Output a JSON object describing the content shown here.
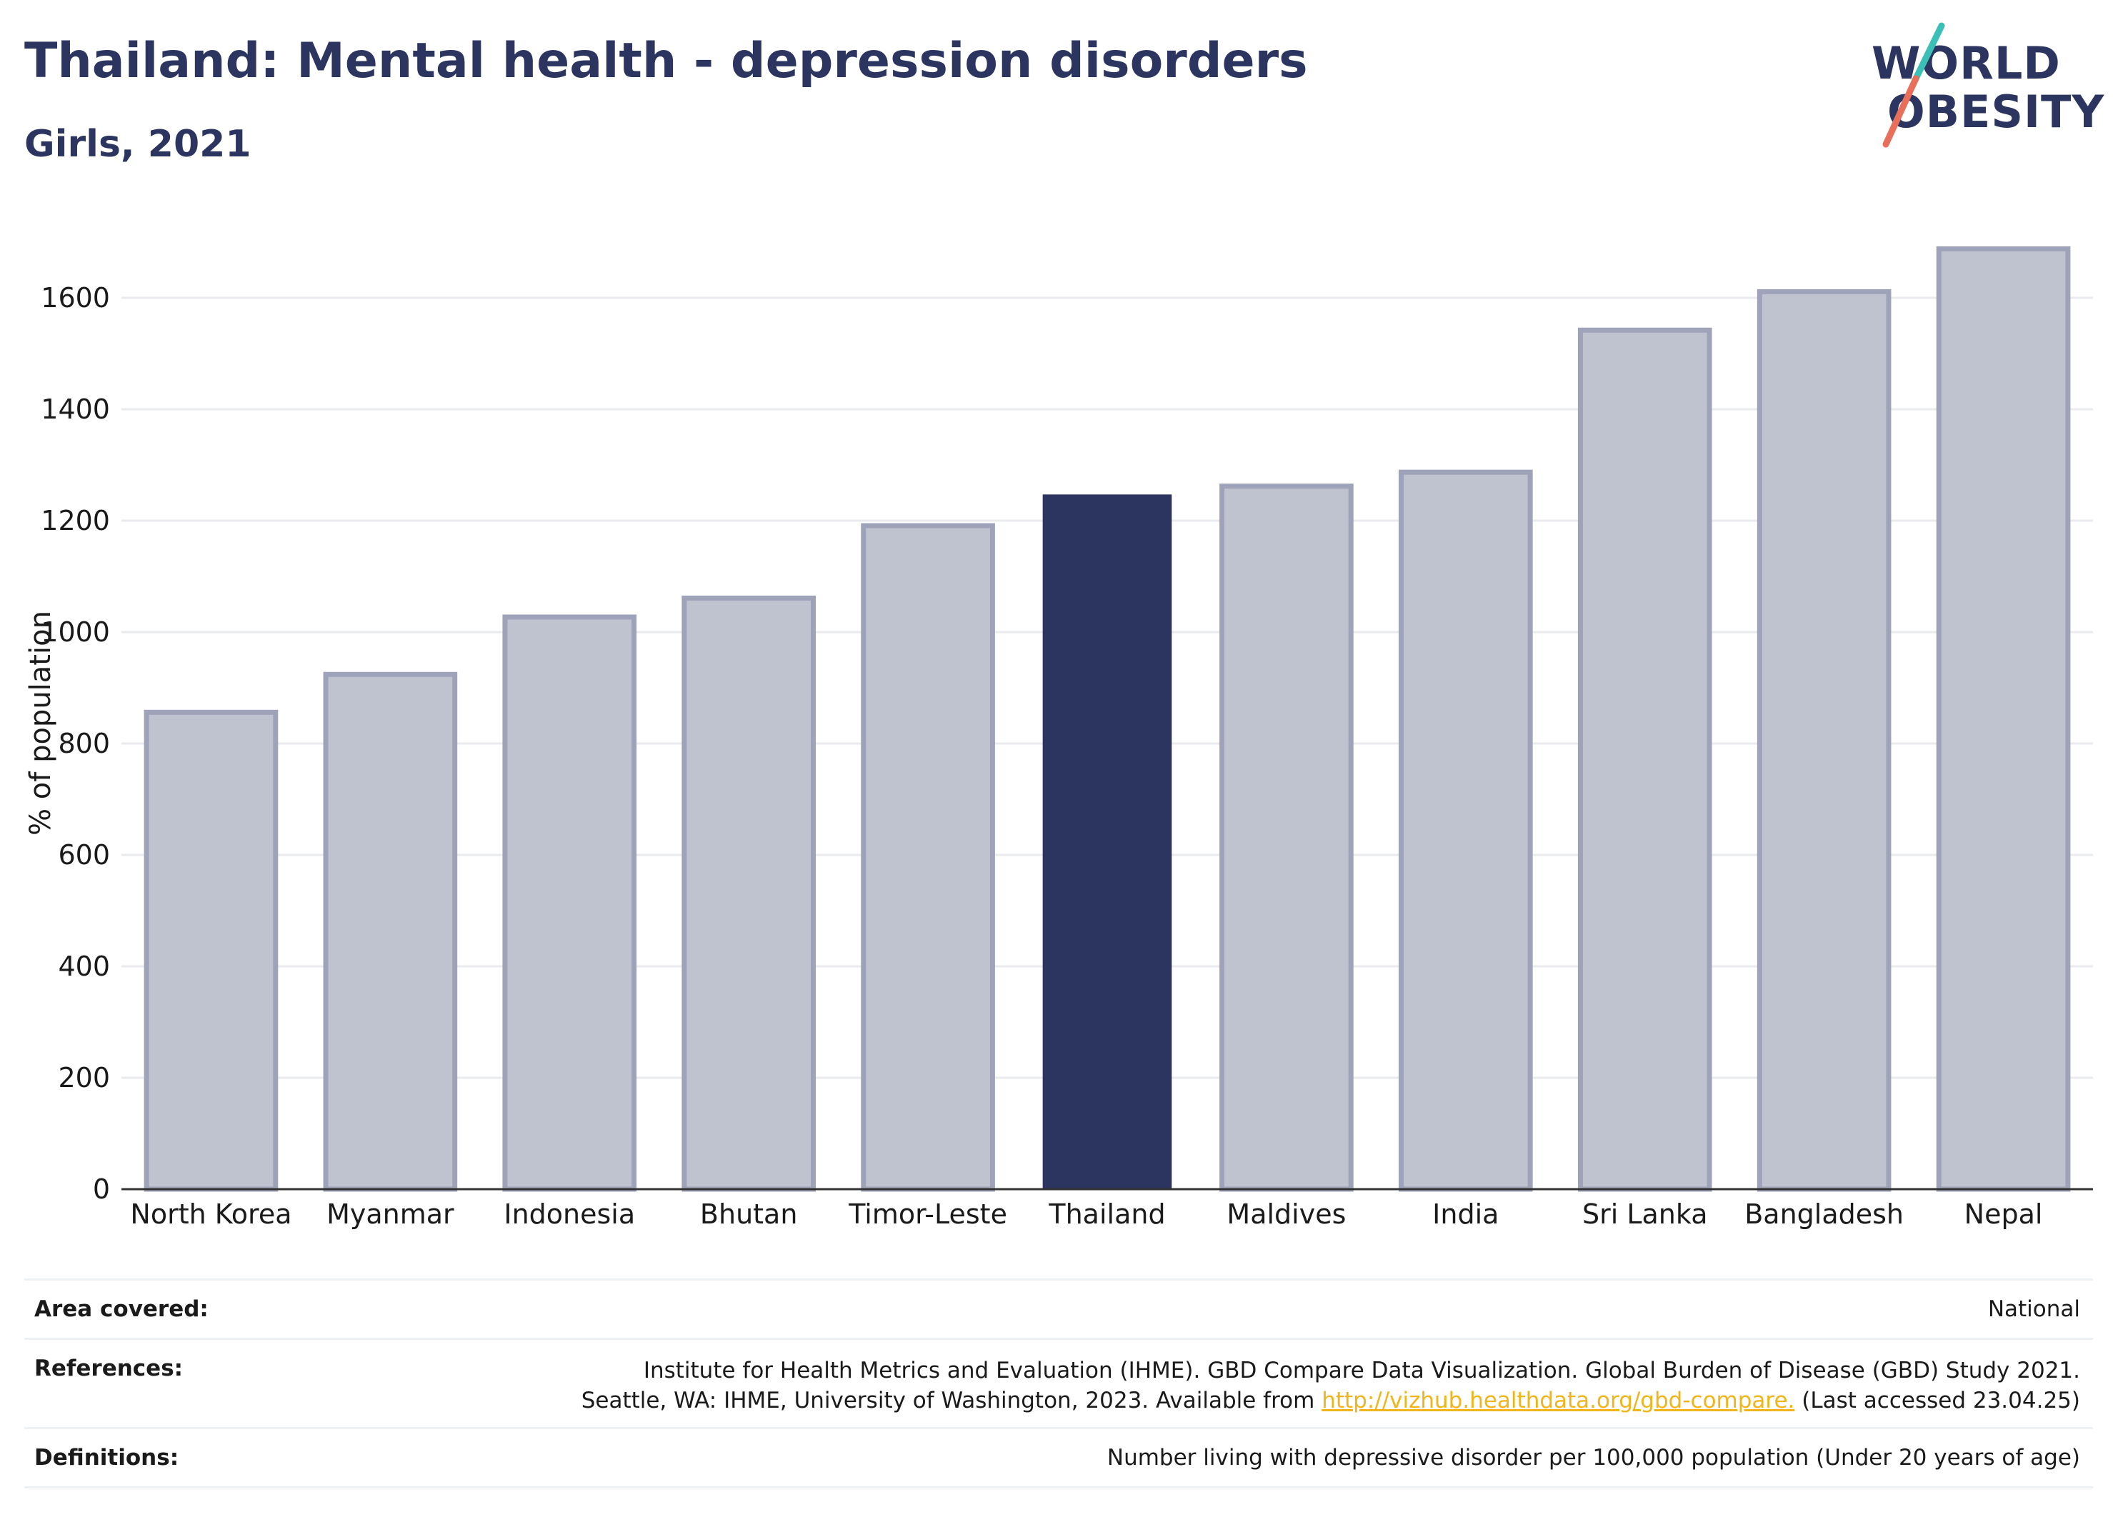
{
  "title": "Thailand: Mental health - depression disorders",
  "subtitle": "Girls, 2021",
  "logo": {
    "line1": "WORLD",
    "line2": "OBESITY",
    "colors": {
      "navy": "#2b3560",
      "teal": "#3bbfb6",
      "coral": "#e8705a"
    }
  },
  "colors": {
    "highlight": "#2b3560",
    "other_fill": "#bfc2cf",
    "other_stroke": "#9ea3b9",
    "grid": "#e9ebee",
    "axis": "#333333"
  },
  "chart_data": {
    "type": "bar",
    "categories": [
      "North Korea",
      "Myanmar",
      "Indonesia",
      "Bhutan",
      "Timor-Leste",
      "Thailand",
      "Maldives",
      "India",
      "Sri Lanka",
      "Bangladesh",
      "Nepal"
    ],
    "values": [
      856,
      924,
      1027,
      1061,
      1191,
      1247,
      1262,
      1287,
      1542,
      1611,
      1688
    ],
    "highlight": "Thailand",
    "xlabel": "",
    "ylabel": "% of population",
    "ylim": [
      0,
      1750
    ],
    "yticks": [
      0,
      200,
      400,
      600,
      800,
      1000,
      1200,
      1400,
      1600
    ],
    "grid": true,
    "legend": "none"
  },
  "info": {
    "area_label": "Area covered:",
    "area_value": "National",
    "references_label": "References:",
    "references_line1": "Institute for Health Metrics and Evaluation (IHME). GBD Compare Data Visualization. Global Burden of Disease (GBD) Study 2021.",
    "references_line2_pre": "Seattle, WA: IHME, University of Washington, 2023. Available from ",
    "references_link": "http://vizhub.healthdata.org/gbd-compare.",
    "references_line2_post": " (Last accessed 23.04.25)",
    "definitions_label": "Definitions:",
    "definitions_value": "Number living with depressive disorder per 100,000 population (Under 20 years of age)"
  }
}
